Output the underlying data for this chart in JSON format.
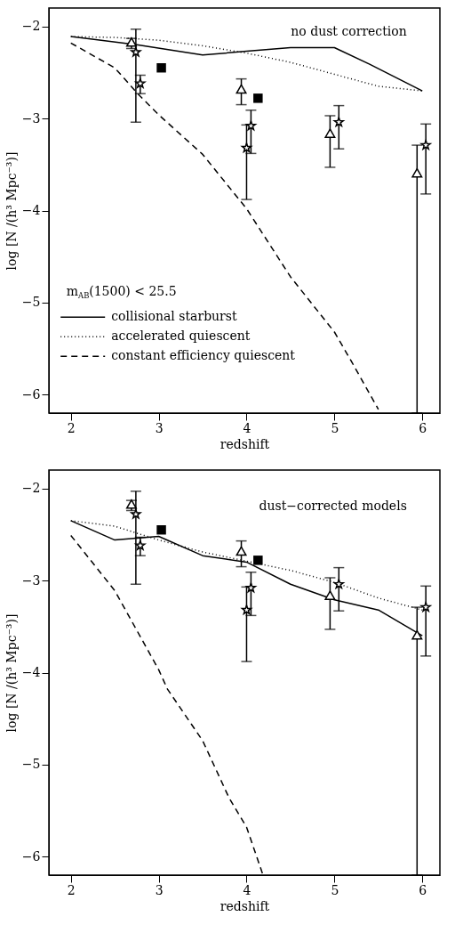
{
  "chart_data": [
    {
      "type": "line",
      "xlabel": "redshift",
      "ylabel": "log [N /(h³ Mpc⁻³)]",
      "xlim": [
        1.75,
        6.2
      ],
      "ylim": [
        -6.2,
        -1.8
      ],
      "xticks": [
        2,
        3,
        4,
        5,
        6
      ],
      "yticks": [
        -2,
        -3,
        -4,
        -5,
        -6
      ],
      "grid": false,
      "legend": "bottom left",
      "annotations": [
        "no dust correction",
        "m$_{AB}$(1500) < 25.5"
      ],
      "series": [
        {
          "name": "collisional starburst",
          "line_style": "solid",
          "color": "#000000",
          "x": [
            2,
            2.75,
            3.5,
            4,
            4.5,
            5,
            5.4,
            6
          ],
          "values": [
            -2.11,
            -2.2,
            -2.31,
            -2.27,
            -2.23,
            -2.23,
            -2.41,
            -2.7
          ]
        },
        {
          "name": "accelerated quiescent",
          "line_style": "dotted",
          "color": "#000000",
          "x": [
            2,
            2.5,
            3,
            3.5,
            4,
            4.5,
            5,
            5.5,
            6
          ],
          "values": [
            -2.11,
            -2.12,
            -2.15,
            -2.21,
            -2.29,
            -2.39,
            -2.52,
            -2.65,
            -2.7
          ]
        },
        {
          "name": "constant efficiency quiescent",
          "line_style": "dashed",
          "color": "#000000",
          "x": [
            2,
            2.5,
            2.75,
            3,
            3.5,
            4,
            4.5,
            5,
            5.2,
            5.5
          ],
          "values": [
            -2.18,
            -2.45,
            -2.72,
            -2.96,
            -3.39,
            -3.98,
            -4.72,
            -5.32,
            -5.65,
            -6.16
          ]
        },
        {
          "type": "scatter",
          "marker": "triangle",
          "color": "#000000",
          "x": [
            2.69,
            3.94,
            4.95,
            5.94
          ],
          "values": [
            -2.17,
            -2.68,
            -3.16,
            -3.59
          ],
          "errors": [
            [
              -2.24,
              -2.13
            ],
            [
              -2.85,
              -2.57
            ],
            [
              -3.53,
              -2.97
            ],
            [
              -6.2,
              -3.29
            ]
          ]
        },
        {
          "type": "scatter",
          "marker": "star",
          "color": "#000000",
          "x": [
            2.74,
            2.79,
            4.0,
            4.05,
            5.05,
            6.04
          ],
          "values": [
            -2.28,
            -2.62,
            -3.32,
            -3.08,
            -3.04,
            -3.29
          ],
          "errors": [
            [
              -3.04,
              -2.03
            ],
            [
              -2.73,
              -2.53
            ],
            [
              -3.88,
              -3.07
            ],
            [
              -3.38,
              -2.91
            ],
            [
              -3.33,
              -2.86
            ],
            [
              -3.82,
              -3.06
            ]
          ]
        },
        {
          "type": "scatter",
          "marker": "square",
          "color": "#000000",
          "x": [
            3.03,
            4.13
          ],
          "values": [
            -2.45,
            -2.78
          ]
        }
      ]
    },
    {
      "type": "line",
      "xlabel": "redshift",
      "ylabel": "log [N /(h³ Mpc⁻³)]",
      "xlim": [
        1.75,
        6.2
      ],
      "ylim": [
        -6.2,
        -1.8
      ],
      "xticks": [
        2,
        3,
        4,
        5,
        6
      ],
      "yticks": [
        -2,
        -3,
        -4,
        -5,
        -6
      ],
      "grid": false,
      "annotations": [
        "dust−corrected models"
      ],
      "series": [
        {
          "line_style": "solid",
          "color": "#000000",
          "x": [
            2,
            2.5,
            3,
            3.5,
            4,
            4.5,
            5,
            5.5,
            6
          ],
          "values": [
            -2.35,
            -2.56,
            -2.52,
            -2.73,
            -2.8,
            -3.04,
            -3.21,
            -3.32,
            -3.6
          ]
        },
        {
          "line_style": "dotted",
          "color": "#000000",
          "x": [
            2,
            2.5,
            3,
            3.5,
            4,
            4.5,
            5,
            5.5,
            6
          ],
          "values": [
            -2.35,
            -2.41,
            -2.56,
            -2.69,
            -2.79,
            -2.89,
            -3.02,
            -3.19,
            -3.32
          ]
        },
        {
          "line_style": "dashed",
          "color": "#000000",
          "x": [
            2,
            2.5,
            3,
            3.1,
            3.5,
            3.8,
            4,
            4.18
          ],
          "values": [
            -2.51,
            -3.11,
            -3.97,
            -4.18,
            -4.74,
            -5.36,
            -5.68,
            -6.18
          ]
        },
        {
          "type": "scatter",
          "marker": "triangle",
          "color": "#000000",
          "x": [
            2.69,
            3.94,
            4.95,
            5.94
          ],
          "values": [
            -2.17,
            -2.68,
            -3.16,
            -3.59
          ],
          "errors": [
            [
              -2.24,
              -2.13
            ],
            [
              -2.85,
              -2.57
            ],
            [
              -3.53,
              -2.97
            ],
            [
              -6.2,
              -3.29
            ]
          ]
        },
        {
          "type": "scatter",
          "marker": "star",
          "color": "#000000",
          "x": [
            2.74,
            2.79,
            4.0,
            4.05,
            5.05,
            6.04
          ],
          "values": [
            -2.28,
            -2.62,
            -3.32,
            -3.08,
            -3.04,
            -3.29
          ],
          "errors": [
            [
              -3.04,
              -2.03
            ],
            [
              -2.73,
              -2.53
            ],
            [
              -3.88,
              -3.07
            ],
            [
              -3.38,
              -2.91
            ],
            [
              -3.33,
              -2.86
            ],
            [
              -3.82,
              -3.06
            ]
          ]
        },
        {
          "type": "scatter",
          "marker": "square",
          "color": "#000000",
          "x": [
            3.03,
            4.13
          ],
          "values": [
            -2.45,
            -2.78
          ]
        }
      ]
    }
  ]
}
